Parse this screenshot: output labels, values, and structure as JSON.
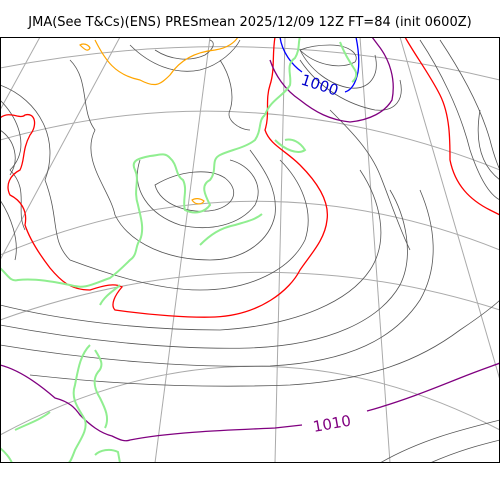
{
  "title": "JMA(See T&Cs)(ENS) PRESmean 2025/12/09 12Z FT=84 (init 0600Z)",
  "isobar_labels": [
    {
      "value": "1000",
      "color": "#0000cc"
    },
    {
      "value": "1010",
      "color": "#800080"
    }
  ],
  "colors": {
    "coastline": "#90ee90",
    "isobar_default": "#555555",
    "isobar_1000": "#0000ff",
    "isobar_1010": "#800080",
    "isobar_1020": "#ff0000",
    "isobar_low": "#ffa500",
    "graticule": "#aaaaaa",
    "frame": "#000000"
  }
}
